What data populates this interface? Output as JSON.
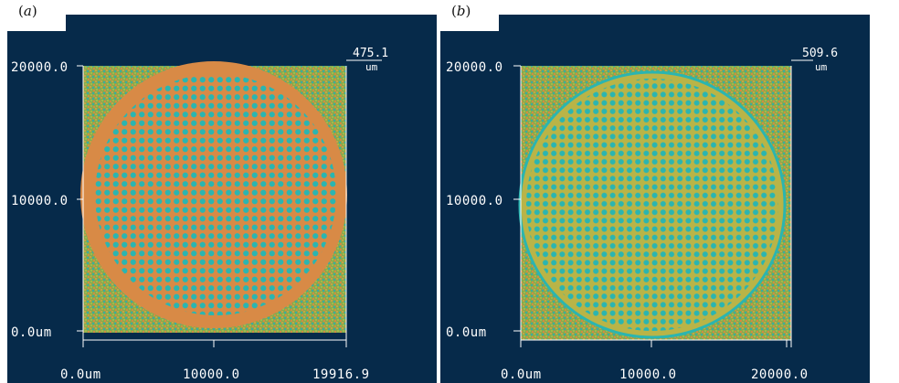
{
  "panels": [
    {
      "tag": "a",
      "y_top_label": "20000.0",
      "y_mid_label": "10000.0",
      "y_bottom_label": "0.0um",
      "x_left_label": "0.0um",
      "x_mid_label": "10000.0",
      "x_right_label": "19916.9",
      "z_max_value": "475.1",
      "z_unit": "um",
      "colors": {
        "background": "#062a4a",
        "surround_green": "#7fa84a",
        "disc_fill": "#d88a46",
        "hole_fill": "#2bb5b0"
      }
    },
    {
      "tag": "b",
      "y_top_label": "20000.0",
      "y_mid_label": "10000.0",
      "y_bottom_label": "0.0um",
      "x_left_label": "0.0um",
      "x_mid_label": "10000.0",
      "x_right_label": "20000.0",
      "z_max_value": "509.6",
      "z_unit": "um",
      "colors": {
        "background": "#062a4a",
        "surround_green": "#7fa84a",
        "disc_fill": "#b9b447",
        "hole_fill": "#2bb5b0"
      }
    }
  ]
}
